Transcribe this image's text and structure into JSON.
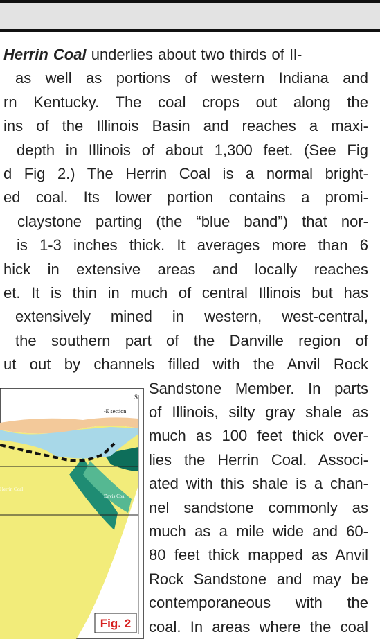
{
  "body": {
    "lead": "Herrin Coal",
    "lines": [
      " underlies about two thirds of Il-",
      "as well as portions of western Indiana and",
      "rn Kentucky.  The coal crops out along the",
      "ins of the Illinois Basin and reaches a maxi-",
      "depth in Illinois of about 1,300 feet.  (See Fig",
      "d Fig 2.)  The Herrin Coal is a normal bright-",
      "ed coal. Its lower portion contains a promi-",
      "claystone parting (the “blue band”) that nor-",
      "is 1-3 inches thick.  It averages more than 6",
      "hick in extensive areas and locally reaches",
      "et. It is thin in much of central Illinois but has",
      "extensively mined in western, west-central,",
      "the southern part of the Danville region of",
      "ut out by channels filled with the Anvil Rock",
      "Sandstone Member. In parts",
      "of Illinois, silty gray shale as",
      "much as 100 feet thick over-",
      "lies the Herrin Coal. Associ-",
      "ated with this shale is a chan-",
      "nel sandstone commonly as",
      "much as a mile wide and 60-",
      "80 feet thick mapped as Anvil",
      "Rock Sandstone and may be",
      "contemporaneous with the",
      "coal.  In areas where the coal"
    ]
  },
  "figure": {
    "direction": "S",
    "section": "-E section",
    "herrin": "Herrin Coal",
    "davis": "Davis Coal",
    "caption": "Fig. 2"
  }
}
